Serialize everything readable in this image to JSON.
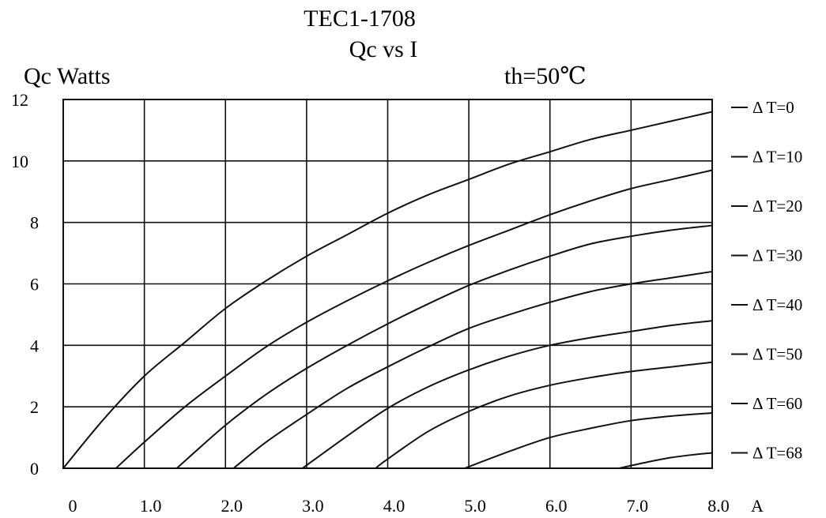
{
  "chart_data": {
    "type": "line",
    "title": "TEC1-1708",
    "subtitle": "Qc vs I",
    "condition": "th=50℃",
    "ylabel": "Qc Watts",
    "xlabel": "A",
    "xlim": [
      0,
      8
    ],
    "ylim": [
      0,
      12
    ],
    "grid": true,
    "legend_position": "right",
    "x_ticks": [
      "0",
      "1.0",
      "2.0",
      "3.0",
      "4.0",
      "5.0",
      "6.0",
      "7.0",
      "8.0"
    ],
    "y_ticks": [
      "0",
      "2",
      "4",
      "6",
      "8",
      "10",
      "12"
    ],
    "series": [
      {
        "name": "Δ T=0",
        "x": [
          0,
          0.5,
          1,
          1.5,
          2,
          2.5,
          3,
          3.5,
          4,
          4.5,
          5,
          5.5,
          6,
          6.5,
          7,
          7.5,
          8
        ],
        "y": [
          0,
          1.6,
          3.0,
          4.1,
          5.2,
          6.1,
          6.9,
          7.6,
          8.3,
          8.9,
          9.4,
          9.9,
          10.3,
          10.7,
          11.0,
          11.3,
          11.6
        ]
      },
      {
        "name": "Δ T=10",
        "x": [
          0.65,
          1,
          1.5,
          2,
          2.5,
          3,
          3.5,
          4,
          4.5,
          5,
          5.5,
          6,
          6.5,
          7,
          7.5,
          8
        ],
        "y": [
          0,
          0.85,
          2.0,
          3.0,
          3.95,
          4.75,
          5.45,
          6.1,
          6.7,
          7.25,
          7.75,
          8.25,
          8.7,
          9.1,
          9.4,
          9.7
        ]
      },
      {
        "name": "Δ T=20",
        "x": [
          1.4,
          2,
          2.5,
          3,
          3.5,
          4,
          4.5,
          5,
          5.5,
          6,
          6.5,
          7,
          7.5,
          8
        ],
        "y": [
          0,
          1.4,
          2.4,
          3.25,
          4.0,
          4.7,
          5.35,
          5.95,
          6.45,
          6.9,
          7.3,
          7.55,
          7.75,
          7.9
        ]
      },
      {
        "name": "Δ T=30",
        "x": [
          2.1,
          2.5,
          3,
          3.5,
          4,
          4.5,
          5,
          5.5,
          6,
          6.5,
          7,
          7.5,
          8
        ],
        "y": [
          0,
          0.85,
          1.75,
          2.6,
          3.3,
          3.95,
          4.55,
          5.0,
          5.4,
          5.75,
          6.0,
          6.2,
          6.4
        ]
      },
      {
        "name": "Δ T=40",
        "x": [
          2.95,
          3.5,
          4,
          4.5,
          5,
          5.5,
          6,
          6.5,
          7,
          7.5,
          8
        ],
        "y": [
          0,
          1.05,
          1.95,
          2.65,
          3.2,
          3.65,
          4.0,
          4.25,
          4.45,
          4.65,
          4.8
        ]
      },
      {
        "name": "Δ T=50",
        "x": [
          3.85,
          4,
          4.5,
          5,
          5.5,
          6,
          6.5,
          7,
          7.5,
          8
        ],
        "y": [
          0,
          0.3,
          1.2,
          1.85,
          2.35,
          2.7,
          2.95,
          3.15,
          3.3,
          3.45
        ]
      },
      {
        "name": "Δ T=60",
        "x": [
          4.95,
          5.5,
          6,
          6.5,
          7,
          7.5,
          8
        ],
        "y": [
          0,
          0.55,
          1.0,
          1.3,
          1.55,
          1.7,
          1.8
        ]
      },
      {
        "name": "Δ T=68",
        "x": [
          6.85,
          7.2,
          7.5,
          7.8,
          8
        ],
        "y": [
          0,
          0.2,
          0.35,
          0.45,
          0.5
        ]
      }
    ]
  }
}
